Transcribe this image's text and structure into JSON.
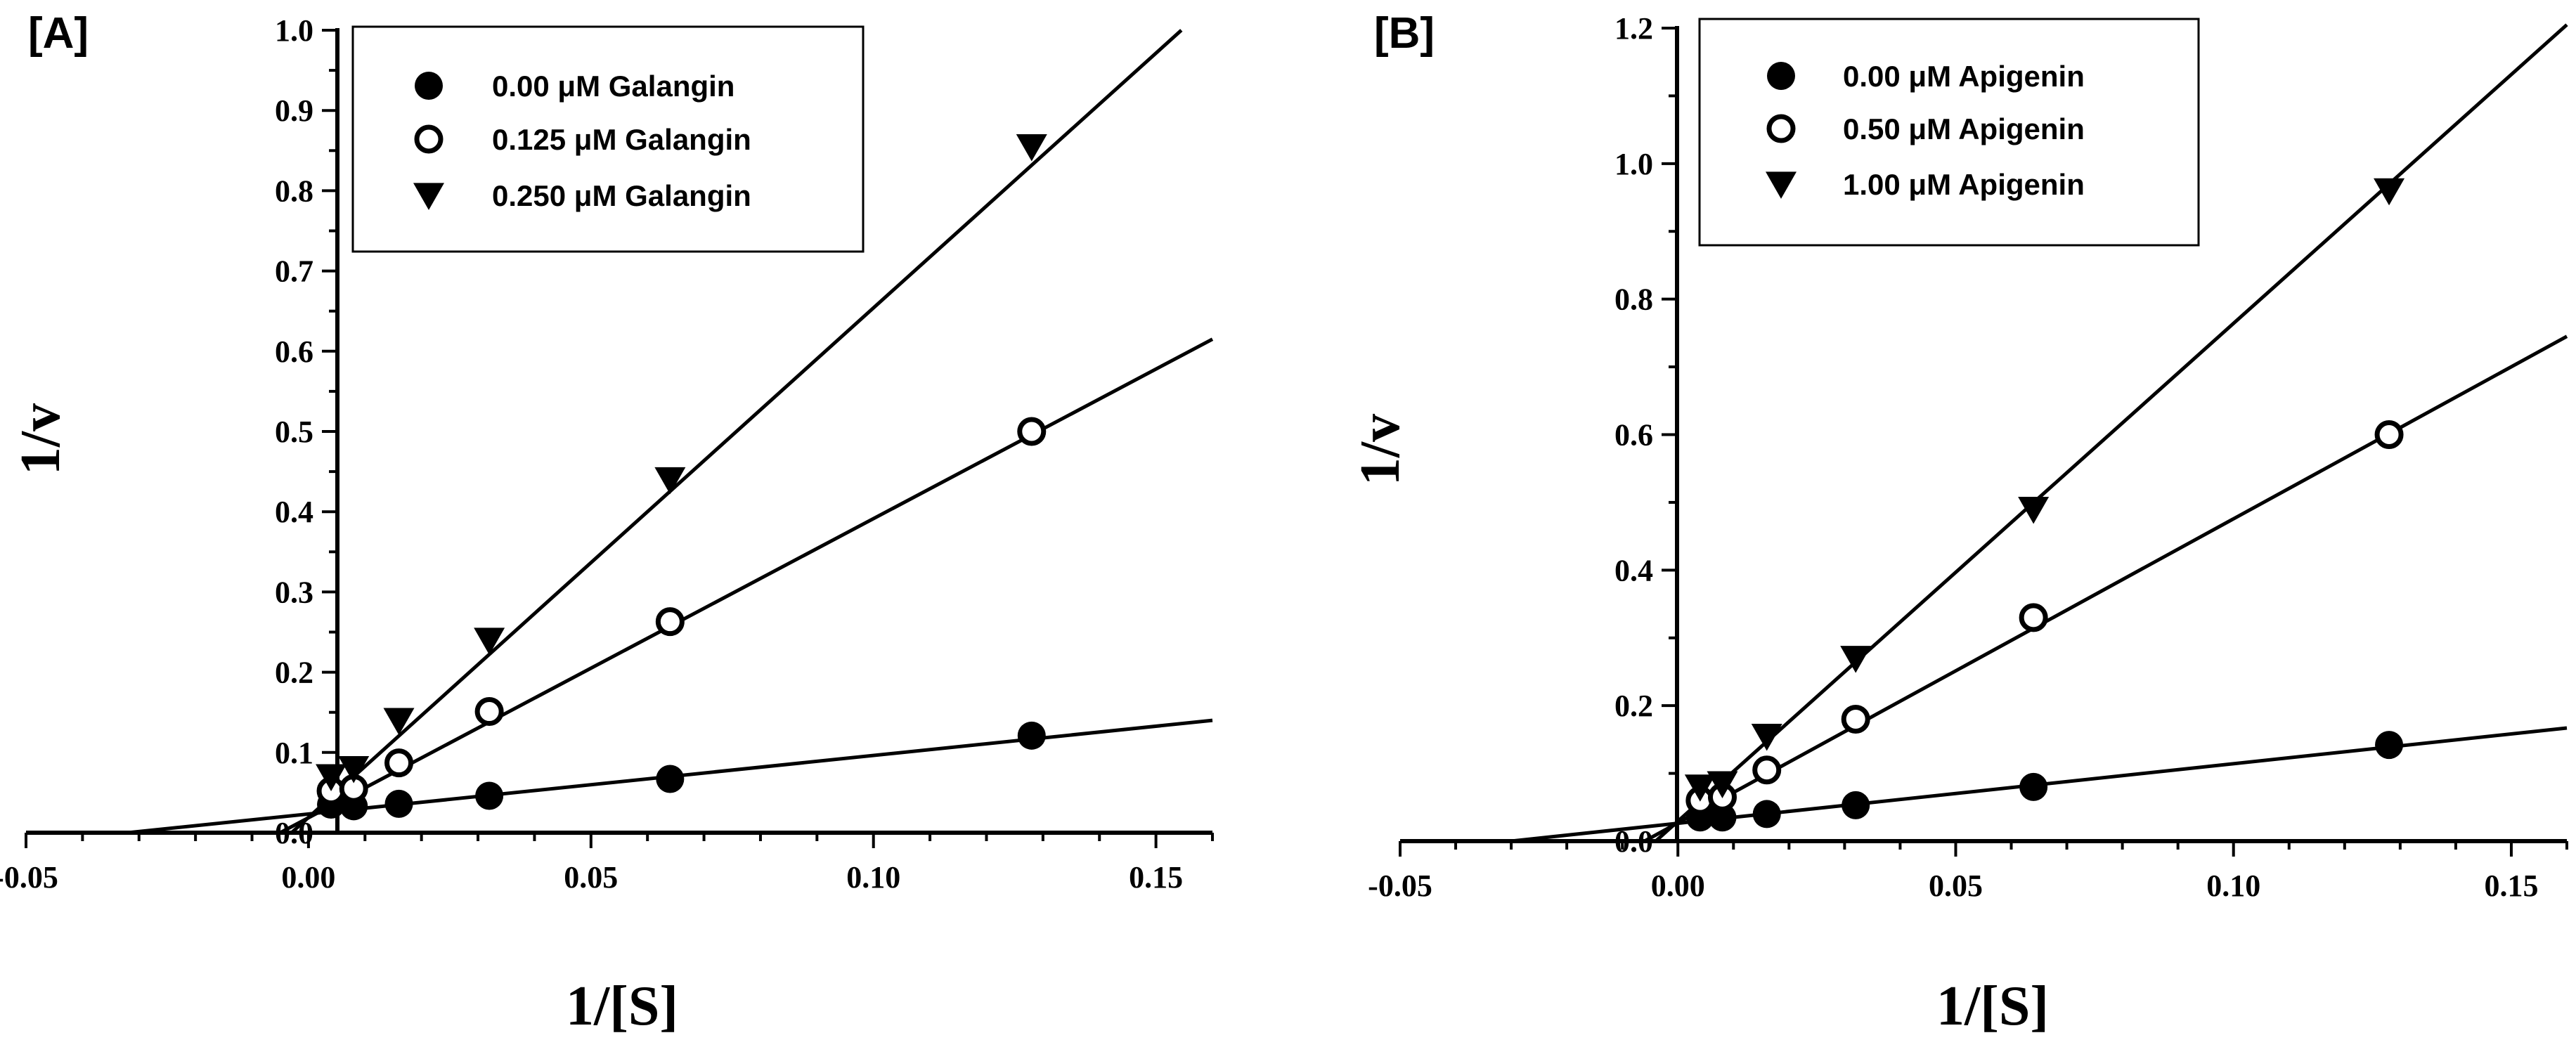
{
  "chart_data": [
    {
      "type": "scatter",
      "panel_label": "[A]",
      "title": "",
      "xlabel": "1/[S]",
      "ylabel": "1/v",
      "xlim": [
        -0.05,
        0.16
      ],
      "ylim": [
        0.0,
        1.0
      ],
      "x_ticks": [
        -0.05,
        0.0,
        0.05,
        0.1,
        0.15
      ],
      "x_tick_labels": [
        "-0.05",
        "0.00",
        "0.05",
        "0.10",
        "0.15"
      ],
      "y_ticks": [
        0.0,
        0.1,
        0.2,
        0.3,
        0.4,
        0.5,
        0.6,
        0.7,
        0.8,
        0.9,
        1.0
      ],
      "y_tick_labels": [
        "0.0",
        "0.1",
        "0.2",
        "0.3",
        "0.4",
        "0.5",
        "0.6",
        "0.7",
        "0.8",
        "0.9",
        "1.0"
      ],
      "legend_position": "top-left",
      "x": [
        0.004,
        0.008,
        0.016,
        0.032,
        0.064,
        0.128
      ],
      "series": [
        {
          "name": "0.00 μM Galangin",
          "marker": "filled-circle",
          "values": [
            0.035,
            0.033,
            0.036,
            0.046,
            0.067,
            0.121
          ],
          "fit_line": {
            "x_start": -0.032,
            "x_end": 0.16,
            "y_start": 0.0,
            "y_end": 0.14
          }
        },
        {
          "name": "0.125 μM Galangin",
          "marker": "open-circle",
          "values": [
            0.052,
            0.055,
            0.087,
            0.151,
            0.263,
            0.5
          ],
          "fit_line": {
            "x_start": -0.005,
            "x_end": 0.16,
            "y_start": 0.0,
            "y_end": 0.615
          }
        },
        {
          "name": "0.250 μM Galangin",
          "marker": "filled-triangle-down",
          "values": [
            0.07,
            0.08,
            0.14,
            0.24,
            0.44,
            0.855
          ],
          "fit_line": {
            "x_start": -0.003,
            "x_end": 0.1545,
            "y_start": 0.0,
            "y_end": 1.0
          }
        }
      ]
    },
    {
      "type": "scatter",
      "panel_label": "[B]",
      "title": "",
      "xlabel": "1/[S]",
      "ylabel": "1/v",
      "xlim": [
        -0.05,
        0.16
      ],
      "ylim": [
        0.0,
        1.2
      ],
      "x_ticks": [
        -0.05,
        0.0,
        0.05,
        0.1,
        0.15
      ],
      "x_tick_labels": [
        "-0.05",
        "0.00",
        "0.05",
        "0.10",
        "0.15"
      ],
      "y_ticks": [
        0.0,
        0.2,
        0.4,
        0.6,
        0.8,
        1.0,
        1.2
      ],
      "y_tick_labels": [
        "0.0",
        "0.2",
        "0.4",
        "0.6",
        "0.8",
        "1.0",
        "1.2"
      ],
      "legend_position": "top-left",
      "x": [
        0.004,
        0.008,
        0.016,
        0.032,
        0.064,
        0.128
      ],
      "series": [
        {
          "name": "0.00 μM Apigenin",
          "marker": "filled-circle",
          "values": [
            0.035,
            0.035,
            0.04,
            0.053,
            0.08,
            0.142
          ],
          "fit_line": {
            "x_start": -0.03,
            "x_end": 0.16,
            "y_start": 0.0,
            "y_end": 0.167
          }
        },
        {
          "name": "0.50 μM Apigenin",
          "marker": "open-circle",
          "values": [
            0.06,
            0.065,
            0.105,
            0.18,
            0.33,
            0.6
          ],
          "fit_line": {
            "x_start": -0.006,
            "x_end": 0.16,
            "y_start": 0.0,
            "y_end": 0.745
          }
        },
        {
          "name": "1.00 μM Apigenin",
          "marker": "filled-triangle-down",
          "values": [
            0.08,
            0.085,
            0.155,
            0.27,
            0.49,
            0.96
          ],
          "fit_line": {
            "x_start": -0.004,
            "x_end": 0.16,
            "y_start": 0.0,
            "y_end": 1.205
          }
        }
      ]
    }
  ]
}
